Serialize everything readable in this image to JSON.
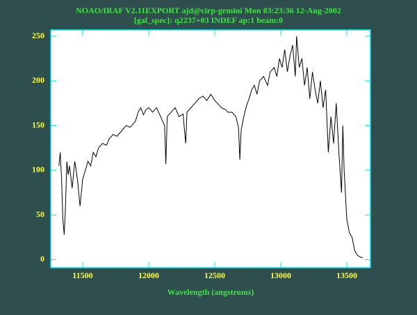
{
  "chart_data": {
    "type": "line",
    "title": "NOAO/IRAF V2.11EXPORT ajd@cirp-gemini Mon 03:23:36 12-Aug-2002",
    "subtitle": "[gal_spec]: q2237+03 INDEF ap:1 beam:0",
    "xlabel": "Wavelength (angstroms)",
    "color": "#000000",
    "x": [
      11320,
      11330,
      11340,
      11350,
      11360,
      11370,
      11380,
      11390,
      11400,
      11420,
      11440,
      11460,
      11480,
      11500,
      11520,
      11540,
      11560,
      11580,
      11600,
      11620,
      11650,
      11680,
      11700,
      11730,
      11760,
      11800,
      11830,
      11860,
      11900,
      11920,
      11940,
      11960,
      11980,
      12000,
      12030,
      12060,
      12090,
      12120,
      12130,
      12140,
      12170,
      12200,
      12230,
      12260,
      12280,
      12290,
      12320,
      12350,
      12380,
      12410,
      12440,
      12470,
      12500,
      12520,
      12550,
      12580,
      12600,
      12630,
      12660,
      12680,
      12690,
      12700,
      12720,
      12740,
      12760,
      12780,
      12800,
      12820,
      12840,
      12870,
      12900,
      12920,
      12950,
      12970,
      12990,
      13010,
      13030,
      13050,
      13070,
      13090,
      13110,
      13120,
      13140,
      13160,
      13180,
      13200,
      13220,
      13240,
      13260,
      13280,
      13300,
      13320,
      13340,
      13360,
      13380,
      13400,
      13420,
      13440,
      13460,
      13470,
      13480,
      13500,
      13520,
      13540,
      13560,
      13580,
      13600,
      13620
    ],
    "values": [
      105,
      120,
      90,
      45,
      28,
      60,
      110,
      95,
      105,
      80,
      110,
      90,
      60,
      90,
      100,
      110,
      105,
      120,
      115,
      125,
      130,
      128,
      135,
      140,
      138,
      145,
      150,
      148,
      155,
      165,
      170,
      162,
      168,
      170,
      165,
      170,
      160,
      150,
      107,
      160,
      165,
      170,
      160,
      163,
      130,
      165,
      170,
      175,
      180,
      183,
      178,
      185,
      178,
      175,
      170,
      168,
      165,
      165,
      160,
      148,
      112,
      145,
      160,
      172,
      180,
      190,
      195,
      185,
      200,
      205,
      195,
      210,
      215,
      205,
      225,
      215,
      235,
      210,
      228,
      240,
      205,
      250,
      215,
      225,
      195,
      215,
      180,
      210,
      190,
      175,
      200,
      170,
      190,
      120,
      160,
      130,
      175,
      120,
      75,
      150,
      100,
      45,
      30,
      25,
      10,
      5,
      3,
      2
    ],
    "xlim": [
      11258,
      13679
    ],
    "ylim": [
      -9,
      257
    ],
    "xticks": [
      11500,
      12000,
      12500,
      13000,
      13500
    ],
    "yticks": [
      0,
      50,
      100,
      150,
      200,
      250
    ]
  }
}
